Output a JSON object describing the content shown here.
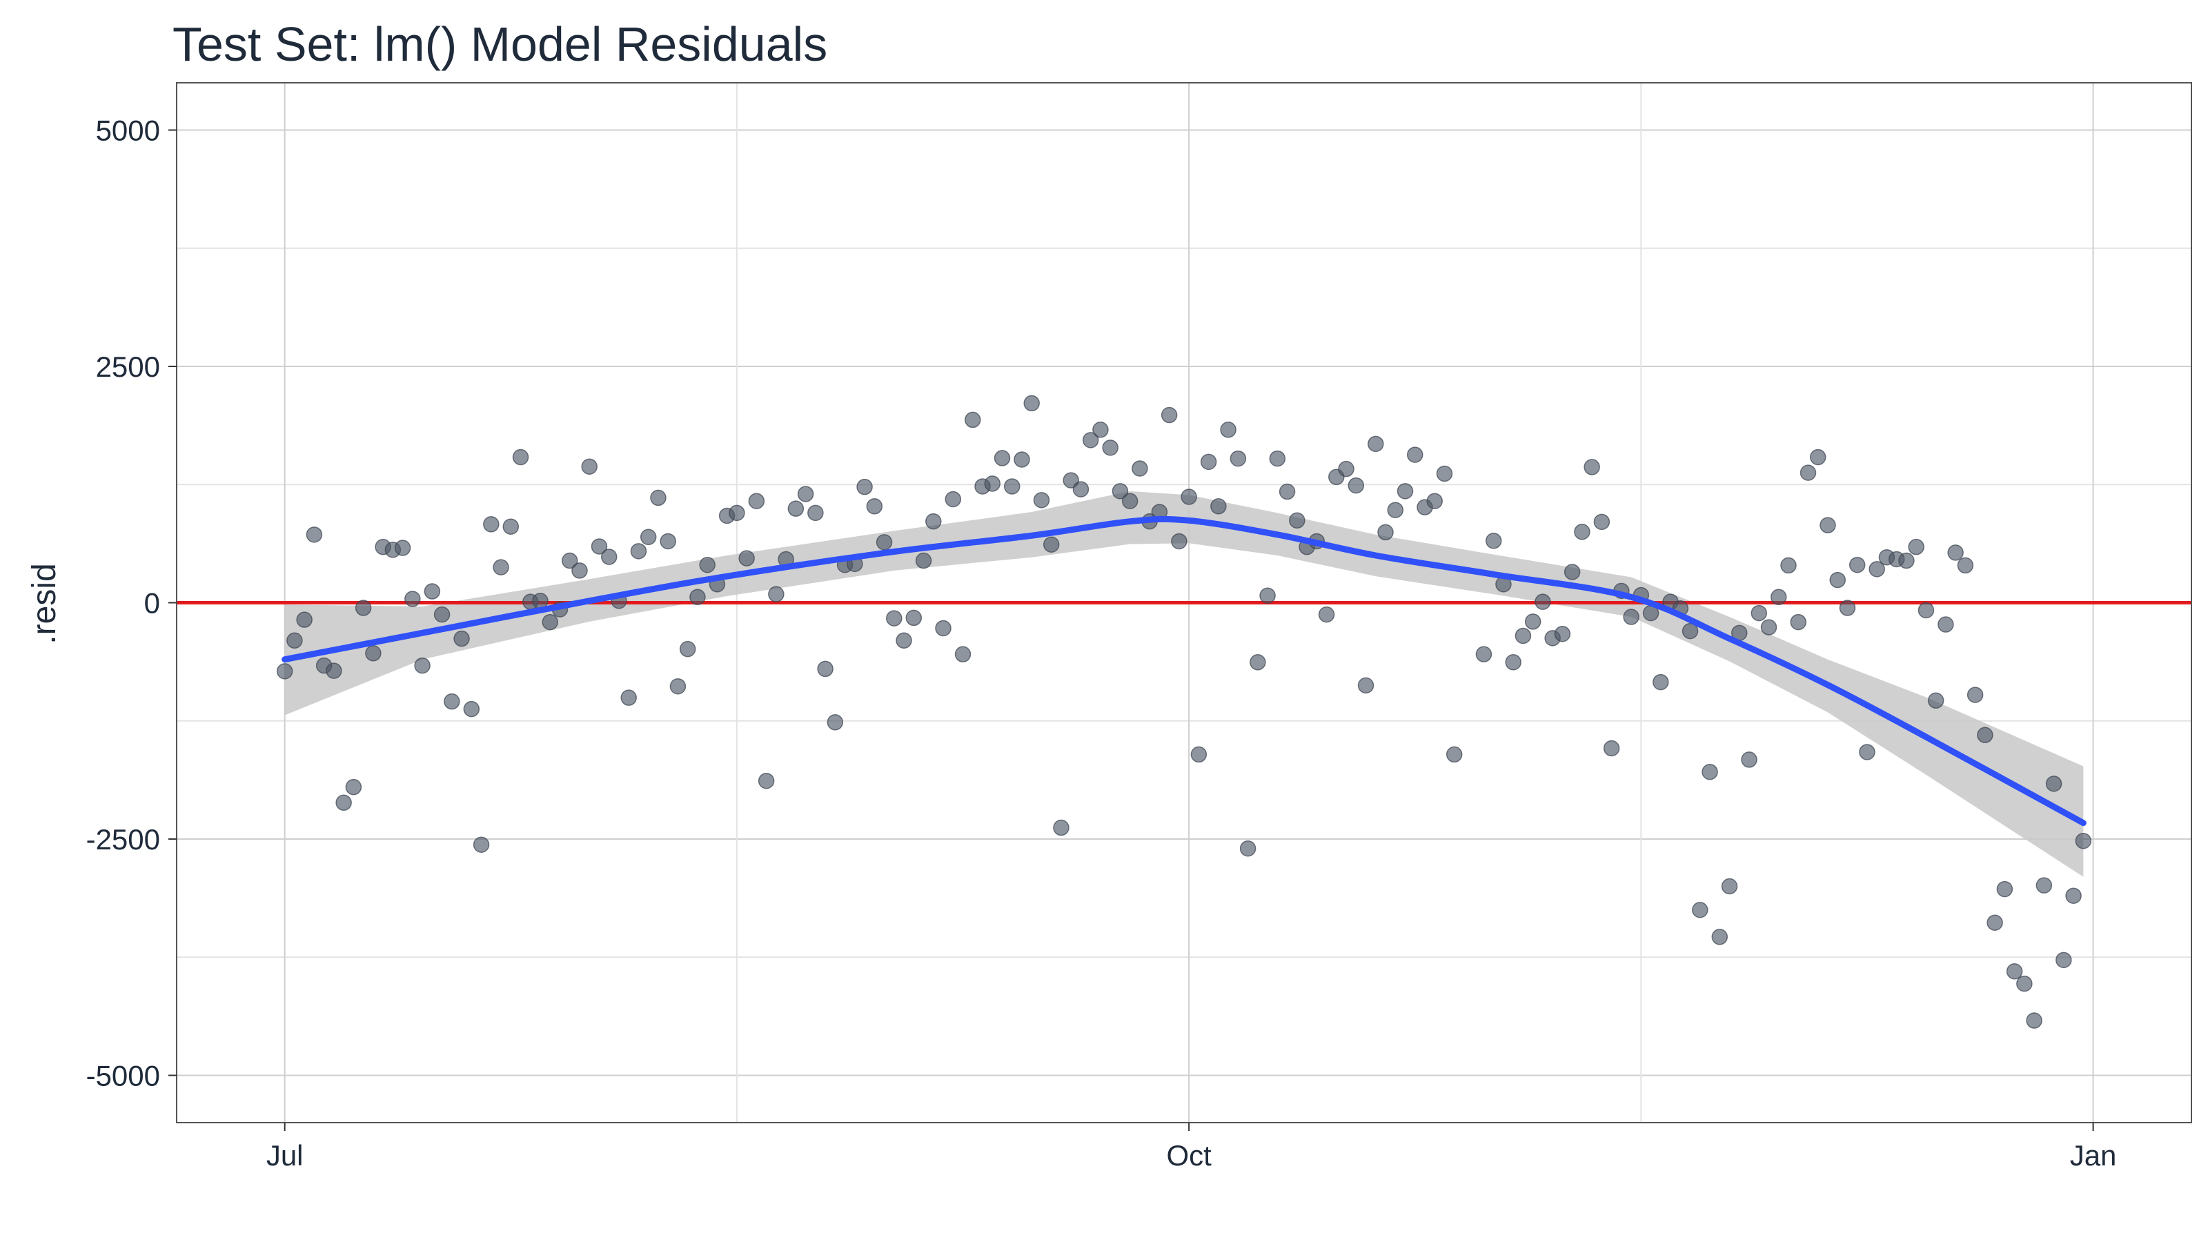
{
  "chart_data": {
    "type": "scatter",
    "title": "Test Set: lm() Model Residuals",
    "xlabel": "",
    "ylabel": ".resid",
    "x_axis": {
      "type": "date",
      "range": [
        "2010-06-20",
        "2011-01-11"
      ],
      "ticks": [
        {
          "date": "2010-07-01",
          "label": "Jul"
        },
        {
          "date": "2010-10-01",
          "label": "Oct"
        },
        {
          "date": "2011-01-01",
          "label": "Jan"
        }
      ]
    },
    "y_axis": {
      "range": [
        -5500,
        5500
      ],
      "ticks": [
        {
          "value": 5000,
          "label": "5000"
        },
        {
          "value": 2500,
          "label": "2500"
        },
        {
          "value": 0,
          "label": "0"
        },
        {
          "value": -2500,
          "label": "-2500"
        },
        {
          "value": -5000,
          "label": "-5000"
        }
      ]
    },
    "grid": true,
    "reference_line": {
      "y": 0,
      "color": "#e31a1c"
    },
    "colors": {
      "points": "#4a5462",
      "smooth": "#3050f8",
      "band": "#c8c8c8",
      "reference": "#e31a1c"
    },
    "series": [
      {
        "kind": "points",
        "points": [
          {
            "x": "2010-07-01",
            "y": -725
          },
          {
            "x": "2010-07-02",
            "y": -400
          },
          {
            "x": "2010-07-03",
            "y": -180
          },
          {
            "x": "2010-07-04",
            "y": 720
          },
          {
            "x": "2010-07-05",
            "y": -665
          },
          {
            "x": "2010-07-06",
            "y": -720
          },
          {
            "x": "2010-07-07",
            "y": -2115
          },
          {
            "x": "2010-07-08",
            "y": -1950
          },
          {
            "x": "2010-07-09",
            "y": -55
          },
          {
            "x": "2010-07-10",
            "y": -535
          },
          {
            "x": "2010-07-11",
            "y": 590
          },
          {
            "x": "2010-07-12",
            "y": 560
          },
          {
            "x": "2010-07-13",
            "y": 580
          },
          {
            "x": "2010-07-14",
            "y": 40
          },
          {
            "x": "2010-07-15",
            "y": -665
          },
          {
            "x": "2010-07-16",
            "y": 120
          },
          {
            "x": "2010-07-17",
            "y": -125
          },
          {
            "x": "2010-07-18",
            "y": -1045
          },
          {
            "x": "2010-07-19",
            "y": -380
          },
          {
            "x": "2010-07-20",
            "y": -1125
          },
          {
            "x": "2010-07-21",
            "y": -2560
          },
          {
            "x": "2010-07-22",
            "y": 830
          },
          {
            "x": "2010-07-23",
            "y": 375
          },
          {
            "x": "2010-07-24",
            "y": 805
          },
          {
            "x": "2010-07-25",
            "y": 1540
          },
          {
            "x": "2010-07-26",
            "y": 10
          },
          {
            "x": "2010-07-27",
            "y": 20
          },
          {
            "x": "2010-07-28",
            "y": -205
          },
          {
            "x": "2010-07-29",
            "y": -70
          },
          {
            "x": "2010-07-30",
            "y": 445
          },
          {
            "x": "2010-07-31",
            "y": 340
          },
          {
            "x": "2010-08-01",
            "y": 1440
          },
          {
            "x": "2010-08-02",
            "y": 595
          },
          {
            "x": "2010-08-03",
            "y": 485
          },
          {
            "x": "2010-08-04",
            "y": 20
          },
          {
            "x": "2010-08-05",
            "y": -1005
          },
          {
            "x": "2010-08-06",
            "y": 545
          },
          {
            "x": "2010-08-07",
            "y": 695
          },
          {
            "x": "2010-08-08",
            "y": 1110
          },
          {
            "x": "2010-08-09",
            "y": 650
          },
          {
            "x": "2010-08-10",
            "y": -885
          },
          {
            "x": "2010-08-11",
            "y": -490
          },
          {
            "x": "2010-08-12",
            "y": 60
          },
          {
            "x": "2010-08-13",
            "y": 400
          },
          {
            "x": "2010-08-14",
            "y": 195
          },
          {
            "x": "2010-08-15",
            "y": 920
          },
          {
            "x": "2010-08-16",
            "y": 950
          },
          {
            "x": "2010-08-17",
            "y": 470
          },
          {
            "x": "2010-08-18",
            "y": 1075
          },
          {
            "x": "2010-08-19",
            "y": -1885
          },
          {
            "x": "2010-08-20",
            "y": 90
          },
          {
            "x": "2010-08-21",
            "y": 460
          },
          {
            "x": "2010-08-22",
            "y": 995
          },
          {
            "x": "2010-08-23",
            "y": 1150
          },
          {
            "x": "2010-08-24",
            "y": 950
          },
          {
            "x": "2010-08-25",
            "y": -700
          },
          {
            "x": "2010-08-26",
            "y": -1265
          },
          {
            "x": "2010-08-27",
            "y": 400
          },
          {
            "x": "2010-08-28",
            "y": 410
          },
          {
            "x": "2010-08-29",
            "y": 1225
          },
          {
            "x": "2010-08-30",
            "y": 1020
          },
          {
            "x": "2010-08-31",
            "y": 640
          },
          {
            "x": "2010-09-01",
            "y": -165
          },
          {
            "x": "2010-09-02",
            "y": -400
          },
          {
            "x": "2010-09-03",
            "y": -160
          },
          {
            "x": "2010-09-04",
            "y": 445
          },
          {
            "x": "2010-09-05",
            "y": 860
          },
          {
            "x": "2010-09-06",
            "y": -270
          },
          {
            "x": "2010-09-07",
            "y": 1095
          },
          {
            "x": "2010-09-08",
            "y": -545
          },
          {
            "x": "2010-09-09",
            "y": 1935
          },
          {
            "x": "2010-09-10",
            "y": 1230
          },
          {
            "x": "2010-09-11",
            "y": 1260
          },
          {
            "x": "2010-09-12",
            "y": 1530
          },
          {
            "x": "2010-09-13",
            "y": 1230
          },
          {
            "x": "2010-09-14",
            "y": 1515
          },
          {
            "x": "2010-09-15",
            "y": 2110
          },
          {
            "x": "2010-09-16",
            "y": 1085
          },
          {
            "x": "2010-09-17",
            "y": 615
          },
          {
            "x": "2010-09-18",
            "y": -2380
          },
          {
            "x": "2010-09-19",
            "y": 1295
          },
          {
            "x": "2010-09-20",
            "y": 1200
          },
          {
            "x": "2010-09-21",
            "y": 1720
          },
          {
            "x": "2010-09-22",
            "y": 1830
          },
          {
            "x": "2010-09-23",
            "y": 1640
          },
          {
            "x": "2010-09-24",
            "y": 1180
          },
          {
            "x": "2010-09-25",
            "y": 1075
          },
          {
            "x": "2010-09-26",
            "y": 1420
          },
          {
            "x": "2010-09-27",
            "y": 860
          },
          {
            "x": "2010-09-28",
            "y": 960
          },
          {
            "x": "2010-09-29",
            "y": 1985
          },
          {
            "x": "2010-09-30",
            "y": 650
          },
          {
            "x": "2010-10-01",
            "y": 1120
          },
          {
            "x": "2010-10-02",
            "y": -1605
          },
          {
            "x": "2010-10-03",
            "y": 1490
          },
          {
            "x": "2010-10-04",
            "y": 1020
          },
          {
            "x": "2010-10-05",
            "y": 1830
          },
          {
            "x": "2010-10-06",
            "y": 1525
          },
          {
            "x": "2010-10-07",
            "y": -2600
          },
          {
            "x": "2010-10-08",
            "y": -630
          },
          {
            "x": "2010-10-09",
            "y": 75
          },
          {
            "x": "2010-10-10",
            "y": 1525
          },
          {
            "x": "2010-10-11",
            "y": 1175
          },
          {
            "x": "2010-10-12",
            "y": 870
          },
          {
            "x": "2010-10-13",
            "y": 590
          },
          {
            "x": "2010-10-14",
            "y": 650
          },
          {
            "x": "2010-10-15",
            "y": -125
          },
          {
            "x": "2010-10-16",
            "y": 1330
          },
          {
            "x": "2010-10-17",
            "y": 1415
          },
          {
            "x": "2010-10-18",
            "y": 1240
          },
          {
            "x": "2010-10-19",
            "y": -875
          },
          {
            "x": "2010-10-20",
            "y": 1680
          },
          {
            "x": "2010-10-21",
            "y": 745
          },
          {
            "x": "2010-10-22",
            "y": 980
          },
          {
            "x": "2010-10-23",
            "y": 1180
          },
          {
            "x": "2010-10-24",
            "y": 1565
          },
          {
            "x": "2010-10-25",
            "y": 1010
          },
          {
            "x": "2010-10-26",
            "y": 1075
          },
          {
            "x": "2010-10-27",
            "y": 1365
          },
          {
            "x": "2010-10-28",
            "y": -1605
          },
          {
            "x": "2010-10-31",
            "y": -545
          },
          {
            "x": "2010-11-01",
            "y": 655
          },
          {
            "x": "2010-11-02",
            "y": 195
          },
          {
            "x": "2010-11-03",
            "y": -630
          },
          {
            "x": "2010-11-04",
            "y": -350
          },
          {
            "x": "2010-11-05",
            "y": -200
          },
          {
            "x": "2010-11-06",
            "y": 10
          },
          {
            "x": "2010-11-07",
            "y": -375
          },
          {
            "x": "2010-11-08",
            "y": -330
          },
          {
            "x": "2010-11-09",
            "y": 325
          },
          {
            "x": "2010-11-10",
            "y": 750
          },
          {
            "x": "2010-11-11",
            "y": 1435
          },
          {
            "x": "2010-11-12",
            "y": 855
          },
          {
            "x": "2010-11-13",
            "y": -1540
          },
          {
            "x": "2010-11-14",
            "y": 125
          },
          {
            "x": "2010-11-15",
            "y": -150
          },
          {
            "x": "2010-11-16",
            "y": 80
          },
          {
            "x": "2010-11-17",
            "y": -110
          },
          {
            "x": "2010-11-18",
            "y": -840
          },
          {
            "x": "2010-11-19",
            "y": 10
          },
          {
            "x": "2010-11-20",
            "y": -60
          },
          {
            "x": "2010-11-21",
            "y": -300
          },
          {
            "x": "2010-11-22",
            "y": -3250
          },
          {
            "x": "2010-11-23",
            "y": -1790
          },
          {
            "x": "2010-11-24",
            "y": -3535
          },
          {
            "x": "2010-11-25",
            "y": -3000
          },
          {
            "x": "2010-11-26",
            "y": -320
          },
          {
            "x": "2010-11-27",
            "y": -1660
          },
          {
            "x": "2010-11-28",
            "y": -110
          },
          {
            "x": "2010-11-29",
            "y": -260
          },
          {
            "x": "2010-11-30",
            "y": 60
          },
          {
            "x": "2010-12-01",
            "y": 395
          },
          {
            "x": "2010-12-02",
            "y": -205
          },
          {
            "x": "2010-12-03",
            "y": 1375
          },
          {
            "x": "2010-12-04",
            "y": 1540
          },
          {
            "x": "2010-12-05",
            "y": 820
          },
          {
            "x": "2010-12-06",
            "y": 240
          },
          {
            "x": "2010-12-07",
            "y": -55
          },
          {
            "x": "2010-12-08",
            "y": 400
          },
          {
            "x": "2010-12-09",
            "y": -1580
          },
          {
            "x": "2010-12-10",
            "y": 355
          },
          {
            "x": "2010-12-11",
            "y": 480
          },
          {
            "x": "2010-12-12",
            "y": 460
          },
          {
            "x": "2010-12-13",
            "y": 445
          },
          {
            "x": "2010-12-14",
            "y": 590
          },
          {
            "x": "2010-12-15",
            "y": -80
          },
          {
            "x": "2010-12-16",
            "y": -1035
          },
          {
            "x": "2010-12-17",
            "y": -230
          },
          {
            "x": "2010-12-18",
            "y": 530
          },
          {
            "x": "2010-12-19",
            "y": 395
          },
          {
            "x": "2010-12-20",
            "y": -975
          },
          {
            "x": "2010-12-21",
            "y": -1400
          },
          {
            "x": "2010-12-22",
            "y": -3385
          },
          {
            "x": "2010-12-23",
            "y": -3030
          },
          {
            "x": "2010-12-24",
            "y": -3900
          },
          {
            "x": "2010-12-25",
            "y": -4030
          },
          {
            "x": "2010-12-26",
            "y": -4420
          },
          {
            "x": "2010-12-27",
            "y": -2990
          },
          {
            "x": "2010-12-28",
            "y": -1915
          },
          {
            "x": "2010-12-29",
            "y": -3780
          },
          {
            "x": "2010-12-30",
            "y": -3100
          },
          {
            "x": "2010-12-31",
            "y": -2520
          }
        ]
      },
      {
        "kind": "smooth",
        "line": [
          {
            "x": "2010-07-01",
            "y": -600
          },
          {
            "x": "2010-07-15",
            "y": -320
          },
          {
            "x": "2010-08-01",
            "y": 20
          },
          {
            "x": "2010-08-15",
            "y": 280
          },
          {
            "x": "2010-09-01",
            "y": 540
          },
          {
            "x": "2010-09-15",
            "y": 710
          },
          {
            "x": "2010-09-25",
            "y": 860
          },
          {
            "x": "2010-10-01",
            "y": 870
          },
          {
            "x": "2010-10-10",
            "y": 720
          },
          {
            "x": "2010-10-20",
            "y": 500
          },
          {
            "x": "2010-11-01",
            "y": 300
          },
          {
            "x": "2010-11-15",
            "y": 60
          },
          {
            "x": "2010-11-25",
            "y": -380
          },
          {
            "x": "2010-12-05",
            "y": -870
          },
          {
            "x": "2010-12-15",
            "y": -1420
          },
          {
            "x": "2010-12-31",
            "y": -2330
          }
        ],
        "band_upper": [
          {
            "x": "2010-07-01",
            "y": -20
          },
          {
            "x": "2010-07-15",
            "y": -40
          },
          {
            "x": "2010-08-01",
            "y": 250
          },
          {
            "x": "2010-08-15",
            "y": 500
          },
          {
            "x": "2010-09-01",
            "y": 760
          },
          {
            "x": "2010-09-15",
            "y": 960
          },
          {
            "x": "2010-09-25",
            "y": 1180
          },
          {
            "x": "2010-10-01",
            "y": 1140
          },
          {
            "x": "2010-10-10",
            "y": 950
          },
          {
            "x": "2010-10-20",
            "y": 720
          },
          {
            "x": "2010-11-01",
            "y": 510
          },
          {
            "x": "2010-11-15",
            "y": 270
          },
          {
            "x": "2010-11-25",
            "y": -150
          },
          {
            "x": "2010-12-05",
            "y": -600
          },
          {
            "x": "2010-12-15",
            "y": -1000
          },
          {
            "x": "2010-12-31",
            "y": -1730
          }
        ],
        "band_lower": [
          {
            "x": "2010-07-01",
            "y": -1190
          },
          {
            "x": "2010-07-15",
            "y": -600
          },
          {
            "x": "2010-08-01",
            "y": -200
          },
          {
            "x": "2010-08-15",
            "y": 70
          },
          {
            "x": "2010-09-01",
            "y": 340
          },
          {
            "x": "2010-09-15",
            "y": 480
          },
          {
            "x": "2010-09-25",
            "y": 620
          },
          {
            "x": "2010-10-01",
            "y": 630
          },
          {
            "x": "2010-10-10",
            "y": 500
          },
          {
            "x": "2010-10-20",
            "y": 280
          },
          {
            "x": "2010-11-01",
            "y": 90
          },
          {
            "x": "2010-11-15",
            "y": -150
          },
          {
            "x": "2010-11-25",
            "y": -620
          },
          {
            "x": "2010-12-05",
            "y": -1160
          },
          {
            "x": "2010-12-15",
            "y": -1820
          },
          {
            "x": "2010-12-31",
            "y": -2900
          }
        ]
      }
    ]
  }
}
